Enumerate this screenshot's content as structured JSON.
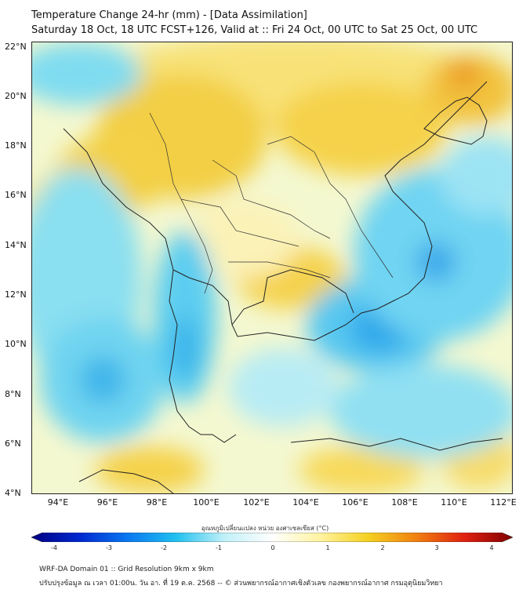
{
  "header": {
    "title": "Temperature Change 24-hr (mm) - [Data Assimilation]",
    "subtitle": "Saturday 18 Oct, 18 UTC FCST+126, Valid at :: Fri 24 Oct, 00 UTC to Sat 25 Oct, 00 UTC"
  },
  "map": {
    "region": "Thailand / Indochina",
    "lat_labels": [
      "22°N",
      "20°N",
      "18°N",
      "16°N",
      "14°N",
      "12°N",
      "10°N",
      "8°N",
      "6°N",
      "4°N"
    ],
    "lon_labels": [
      "94°E",
      "96°E",
      "98°E",
      "100°E",
      "102°E",
      "104°E",
      "106°E",
      "108°E",
      "110°E",
      "112°E"
    ]
  },
  "colorbar": {
    "title": "อุณหภูมิเปลี่ยนแปลง หน่วย องศาเซลเซียส (°C)",
    "ticks": [
      "-4",
      "-3",
      "-2",
      "-1",
      "0",
      "1",
      "2",
      "3",
      "4"
    ],
    "colors": [
      "#000080",
      "#0028d0",
      "#0a78f0",
      "#20c0f0",
      "#c0f0f8",
      "#ffffff",
      "#fff3a0",
      "#f5d020",
      "#f08010",
      "#e02010",
      "#800000"
    ]
  },
  "footer": {
    "line1": "WRF-DA Domain 01 :: Grid Resolution 9km x 9km",
    "line2": "ปรับปรุงข้อมูล ณ เวลา 01:00น. วัน อา. ที่ 19 ต.ค. 2568 -- © ส่วนพยากรณ์อากาศเชิงตัวเลข กองพยากรณ์อากาศ กรมอุตุนิยมวิทยา"
  }
}
